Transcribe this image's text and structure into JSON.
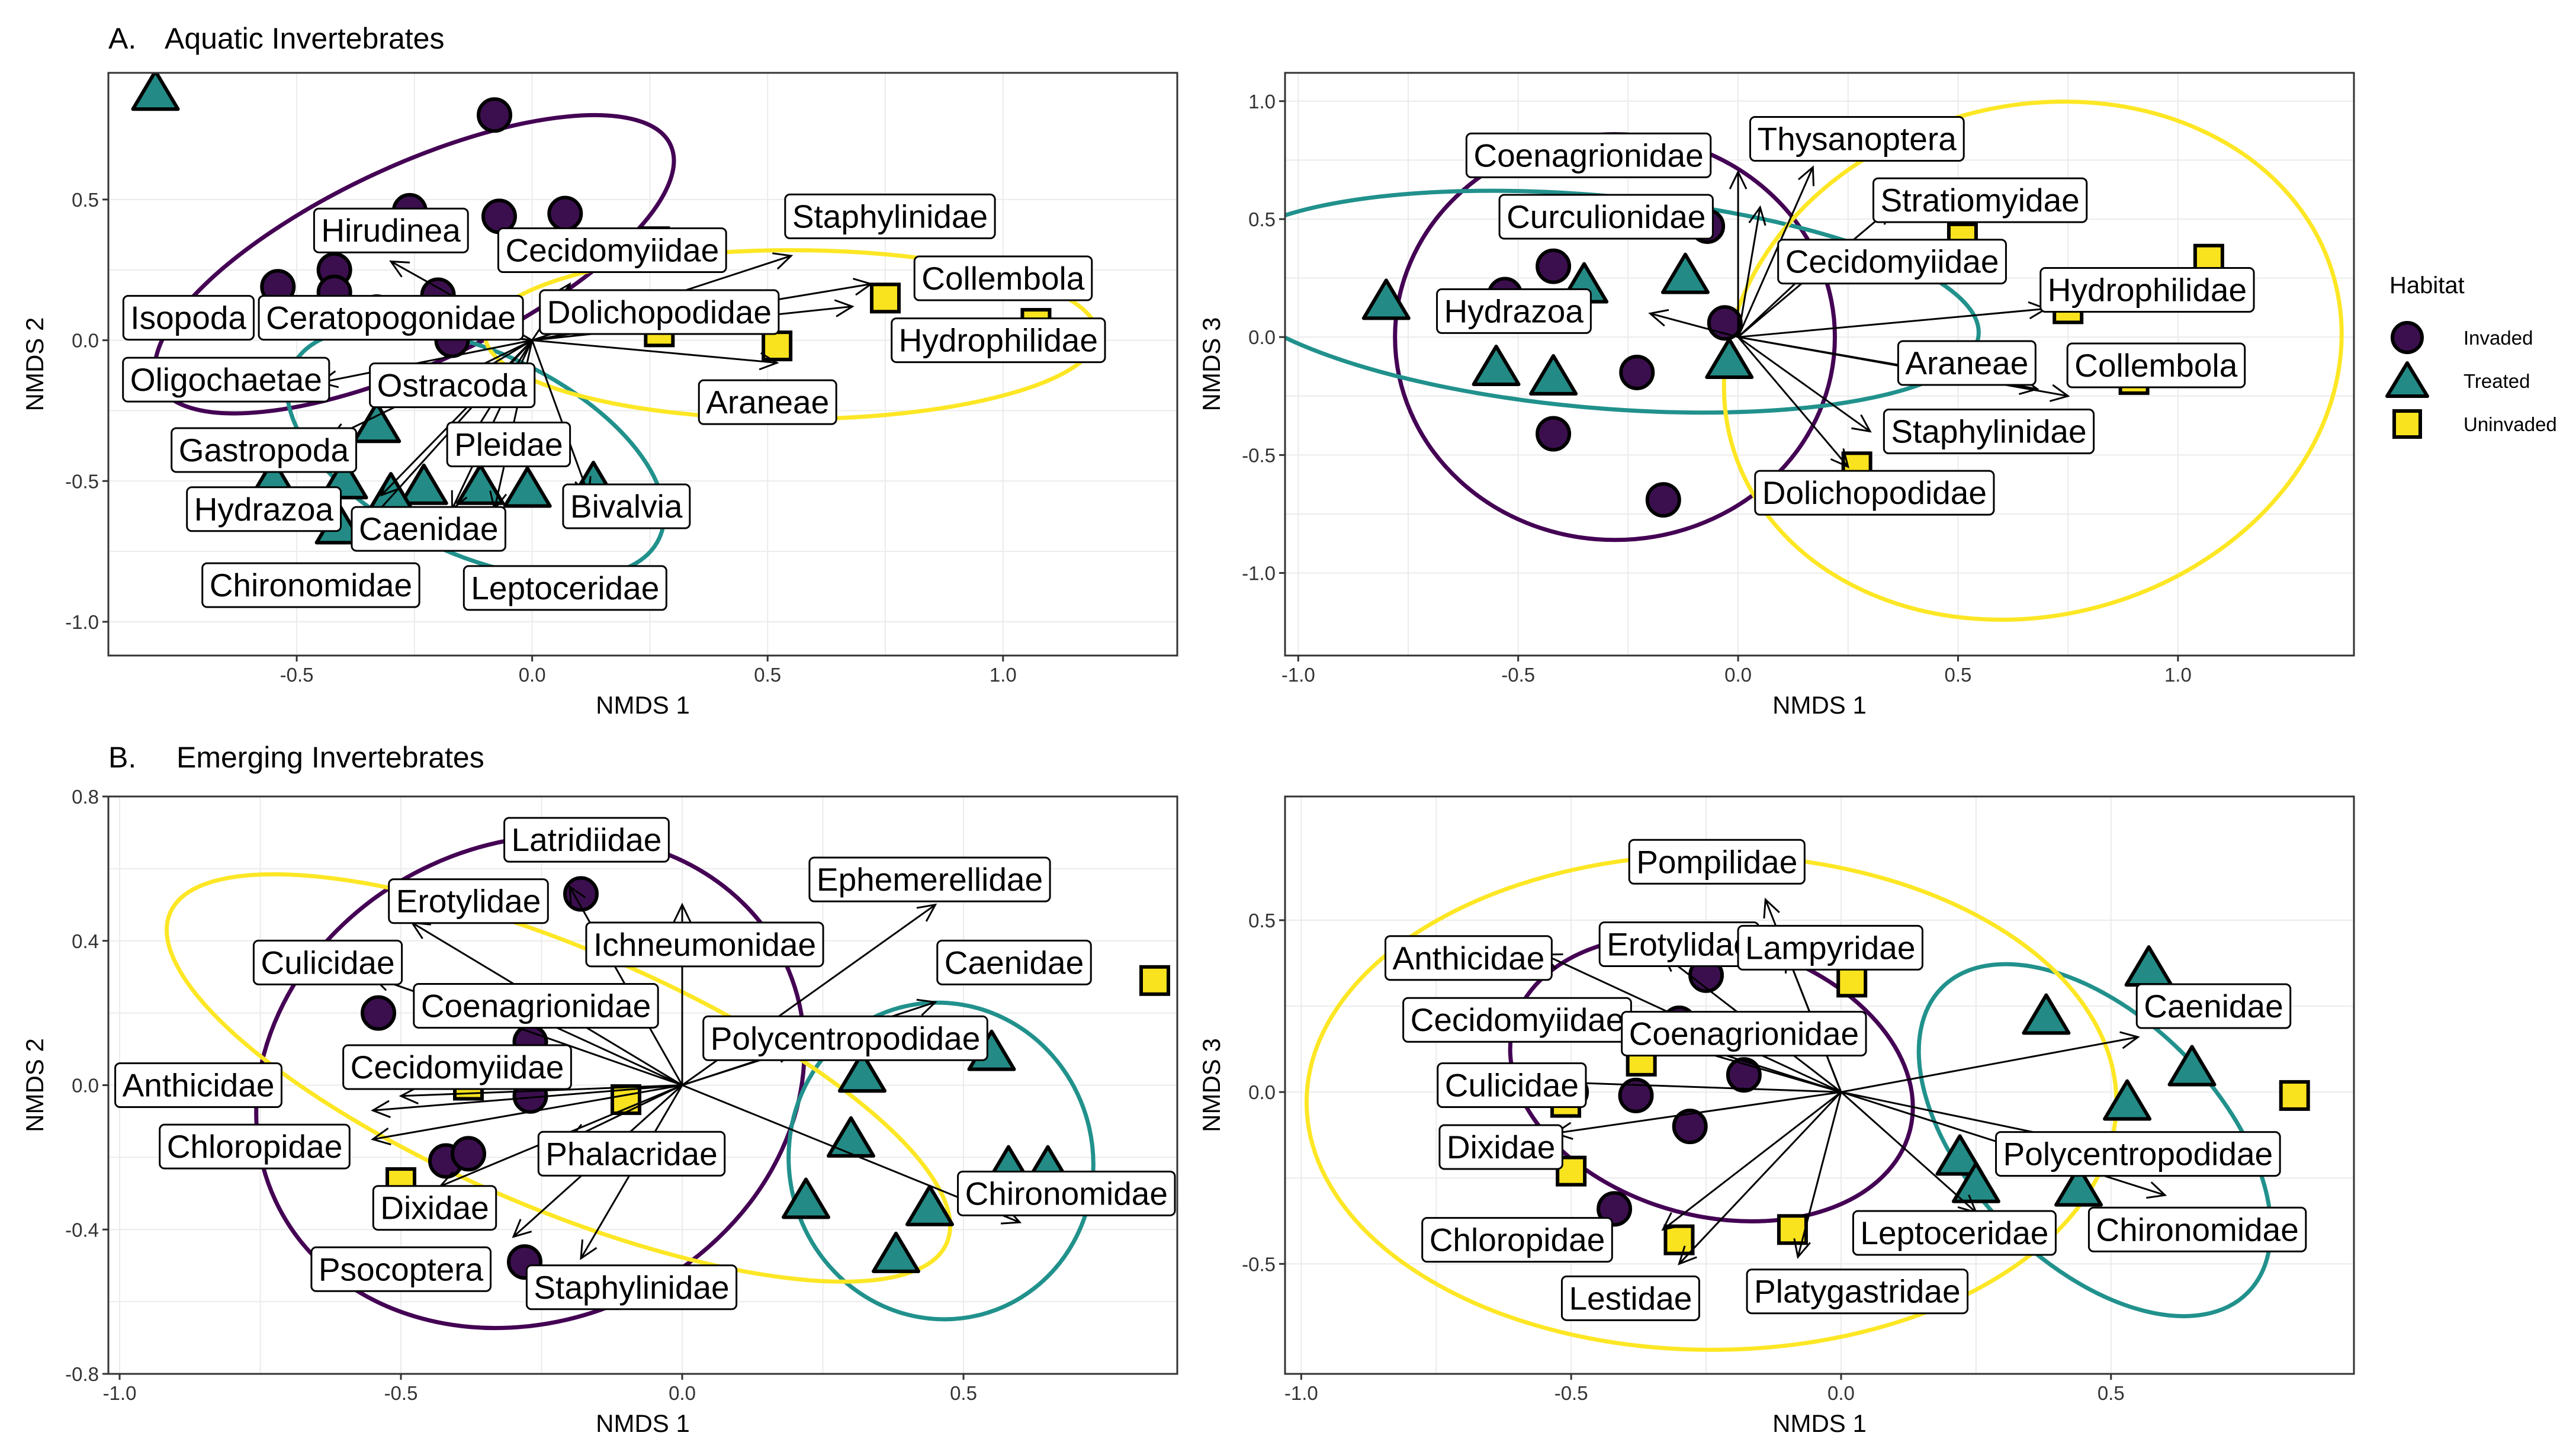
{
  "colors": {
    "invaded": "#3b0f4e",
    "treated": "#238a85",
    "uninvaded": "#f9e21e",
    "invaded_ellipse": "#440154",
    "treated_ellipse": "#21918c",
    "uninvaded_ellipse": "#fde725",
    "panel_border": "#333333",
    "grid": "#ebebeb"
  },
  "sections": [
    {
      "letter": "A.",
      "title": "Aquatic Invertebrates"
    },
    {
      "letter": "B.",
      "title": "Emerging Invertebrates"
    }
  ],
  "legend": {
    "title": "Habitat",
    "items": [
      {
        "label": "Invaded",
        "shape": "circle",
        "color": "#3b0f4e"
      },
      {
        "label": "Treated",
        "shape": "triangle",
        "color": "#238a85"
      },
      {
        "label": "Uninvaded",
        "shape": "square",
        "color": "#f9e21e"
      }
    ]
  },
  "chart_data": [
    {
      "type": "scatter",
      "section": "A",
      "xlabel": "NMDS 1",
      "ylabel": "NMDS 2",
      "xlim": [
        -0.9,
        1.37
      ],
      "ylim": [
        -1.12,
        0.95
      ],
      "xticks": [
        -0.5,
        0.0,
        0.5,
        1.0
      ],
      "yticks": [
        -1.0,
        -0.5,
        0.0,
        0.5
      ],
      "xtick_labels": [
        "-0.5",
        "0.0",
        "0.5",
        "1.0"
      ],
      "ytick_labels": [
        "-1.0",
        "-0.5",
        "0.0",
        "0.5"
      ],
      "points": {
        "Invaded": [
          [
            -0.08,
            0.8
          ],
          [
            -0.26,
            0.46
          ],
          [
            -0.07,
            0.44
          ],
          [
            0.07,
            0.45
          ],
          [
            -0.54,
            0.19
          ],
          [
            -0.42,
            0.25
          ],
          [
            -0.42,
            0.17
          ],
          [
            -0.2,
            0.16
          ],
          [
            -0.17,
            0.05
          ],
          [
            -0.33,
            0.1
          ],
          [
            -0.17,
            0.0
          ]
        ],
        "Treated": [
          [
            -0.8,
            0.88
          ],
          [
            -0.33,
            -0.3
          ],
          [
            -0.55,
            -0.5
          ],
          [
            -0.4,
            -0.5
          ],
          [
            -0.23,
            -0.52
          ],
          [
            -0.11,
            -0.52
          ],
          [
            -0.01,
            -0.53
          ],
          [
            0.13,
            -0.51
          ],
          [
            -0.41,
            -0.66
          ],
          [
            -0.3,
            -0.55
          ]
        ],
        "Uninvaded": [
          [
            0.26,
            0.35
          ],
          [
            0.29,
            0.3
          ],
          [
            0.27,
            0.03
          ],
          [
            0.52,
            -0.02
          ],
          [
            0.75,
            0.15
          ],
          [
            1.07,
            0.06
          ]
        ]
      },
      "ellipses": {
        "Invaded": {
          "cx": -0.25,
          "cy": 0.27,
          "rx": 0.6,
          "ry": 0.35,
          "angle": 25
        },
        "Treated": {
          "cx": -0.12,
          "cy": -0.4,
          "rx": 0.43,
          "ry": 0.36,
          "angle": -25
        },
        "Uninvaded": {
          "cx": 0.55,
          "cy": 0.02,
          "rx": 0.65,
          "ry": 0.3,
          "angle": 0
        }
      },
      "vectors": [
        {
          "label": "Hirudinea",
          "x": -0.3,
          "y": 0.28,
          "lx": -0.3,
          "ly": 0.39
        },
        {
          "label": "Cecidomyiidae",
          "x": 0.08,
          "y": 0.2,
          "lx": 0.17,
          "ly": 0.32
        },
        {
          "label": "Staphylinidae",
          "x": 0.55,
          "y": 0.3,
          "lx": 0.76,
          "ly": 0.44
        },
        {
          "label": "Collembola",
          "x": 0.72,
          "y": 0.2,
          "lx": 1.0,
          "ly": 0.22
        },
        {
          "label": "Hydrophilidae",
          "x": 0.68,
          "y": 0.12,
          "lx": 0.99,
          "ly": 0.0
        },
        {
          "label": "Dolichopodidae",
          "x": 0.3,
          "y": 0.09,
          "lx": 0.27,
          "ly": 0.1
        },
        {
          "label": "Isopoda",
          "x": -0.45,
          "y": 0.08,
          "lx": -0.73,
          "ly": 0.08
        },
        {
          "label": "Ceratopogonidae",
          "x": -0.25,
          "y": 0.06,
          "lx": -0.3,
          "ly": 0.08
        },
        {
          "label": "Araneae",
          "x": 0.52,
          "y": -0.08,
          "lx": 0.5,
          "ly": -0.22
        },
        {
          "label": "Oligochaetae",
          "x": -0.45,
          "y": -0.15,
          "lx": -0.65,
          "ly": -0.14
        },
        {
          "label": "Ostracoda",
          "x": -0.2,
          "y": -0.2,
          "lx": -0.17,
          "ly": -0.16
        },
        {
          "label": "Gastropoda",
          "x": -0.43,
          "y": -0.35,
          "lx": -0.57,
          "ly": -0.39
        },
        {
          "label": "Pleidae",
          "x": -0.15,
          "y": -0.4,
          "lx": -0.05,
          "ly": -0.37
        },
        {
          "label": "Bivalvia",
          "x": 0.12,
          "y": -0.55,
          "lx": 0.2,
          "ly": -0.59
        },
        {
          "label": "Hydrazoa",
          "x": -0.32,
          "y": -0.55,
          "lx": -0.57,
          "ly": -0.6
        },
        {
          "label": "Caenidae",
          "x": -0.17,
          "y": -0.6,
          "lx": -0.22,
          "ly": -0.67
        },
        {
          "label": "Chironomidae",
          "x": -0.35,
          "y": -0.65,
          "lx": -0.47,
          "ly": -0.87
        },
        {
          "label": "Leptoceridae",
          "x": -0.08,
          "y": -0.6,
          "lx": 0.07,
          "ly": -0.88
        }
      ]
    },
    {
      "type": "scatter",
      "section": "A",
      "xlabel": "NMDS 1",
      "ylabel": "NMDS 3",
      "xlim": [
        -1.03,
        1.4
      ],
      "ylim": [
        -1.35,
        1.12
      ],
      "xticks": [
        -1.0,
        -0.5,
        0.0,
        0.5,
        1.0
      ],
      "yticks": [
        -1.0,
        -0.5,
        0.0,
        0.5,
        1.0
      ],
      "xtick_labels": [
        "-1.0",
        "-0.5",
        "0.0",
        "0.5",
        "1.0"
      ],
      "ytick_labels": [
        "-1.0",
        "-0.5",
        "0.0",
        "0.5",
        "1.0"
      ],
      "points": {
        "Invaded": [
          [
            -0.42,
            0.3
          ],
          [
            -0.07,
            0.47
          ],
          [
            -0.3,
            0.5
          ],
          [
            -0.53,
            0.18
          ],
          [
            -0.23,
            -0.15
          ],
          [
            -0.03,
            0.06
          ],
          [
            -0.42,
            -0.41
          ],
          [
            -0.17,
            -0.69
          ]
        ],
        "Treated": [
          [
            -0.8,
            0.15
          ],
          [
            -0.55,
            -0.13
          ],
          [
            -0.42,
            -0.17
          ],
          [
            -0.35,
            0.22
          ],
          [
            -0.12,
            0.26
          ],
          [
            -0.02,
            -0.1
          ]
        ],
        "Uninvaded": [
          [
            0.37,
            0.55
          ],
          [
            0.51,
            0.42
          ],
          [
            1.07,
            0.33
          ],
          [
            0.75,
            0.12
          ],
          [
            0.9,
            -0.18
          ],
          [
            0.27,
            -0.55
          ]
        ]
      },
      "ellipses": {
        "Invaded": {
          "cx": -0.28,
          "cy": 0.0,
          "rx": 0.5,
          "ry": 0.86,
          "angle": 0
        },
        "Treated": {
          "cx": -0.32,
          "cy": 0.15,
          "rx": 0.87,
          "ry": 0.45,
          "angle": -5
        },
        "Uninvaded": {
          "cx": 0.67,
          "cy": -0.1,
          "rx": 0.71,
          "ry": 1.08,
          "angle": 15
        }
      },
      "vectors": [
        {
          "label": "Coenagrionidae",
          "x": 0.0,
          "y": 0.7,
          "lx": -0.34,
          "ly": 0.77
        },
        {
          "label": "Thysanoptera",
          "x": 0.17,
          "y": 0.72,
          "lx": 0.27,
          "ly": 0.84
        },
        {
          "label": "Curculionidae",
          "x": 0.05,
          "y": 0.55,
          "lx": -0.3,
          "ly": 0.51
        },
        {
          "label": "Stratiomyidae",
          "x": 0.35,
          "y": 0.55,
          "lx": 0.55,
          "ly": 0.58
        },
        {
          "label": "Cecidomyiidae",
          "x": 0.2,
          "y": 0.35,
          "lx": 0.35,
          "ly": 0.32
        },
        {
          "label": "Hydrophilidae",
          "x": 0.7,
          "y": 0.12,
          "lx": 0.93,
          "ly": 0.2
        },
        {
          "label": "Hydrazoa",
          "x": -0.2,
          "y": 0.1,
          "lx": -0.51,
          "ly": 0.11
        },
        {
          "label": "Araneae",
          "x": 0.68,
          "y": -0.22,
          "lx": 0.52,
          "ly": -0.11
        },
        {
          "label": "Collembola",
          "x": 0.75,
          "y": -0.25,
          "lx": 0.95,
          "ly": -0.12
        },
        {
          "label": "Staphylinidae",
          "x": 0.3,
          "y": -0.4,
          "lx": 0.57,
          "ly": -0.4
        },
        {
          "label": "Dolichopodidae",
          "x": 0.25,
          "y": -0.55,
          "lx": 0.31,
          "ly": -0.66
        }
      ]
    },
    {
      "type": "scatter",
      "section": "B",
      "xlabel": "NMDS 1",
      "ylabel": "NMDS 2",
      "xlim": [
        -1.02,
        0.88
      ],
      "ylim": [
        -0.8,
        0.8
      ],
      "xticks": [
        -1.0,
        -0.5,
        0.0,
        0.5
      ],
      "yticks": [
        -0.8,
        -0.4,
        0.0,
        0.4,
        0.8
      ],
      "xtick_labels": [
        "-1.0",
        "-0.5",
        "0.0",
        "0.5"
      ],
      "ytick_labels": [
        "-0.8",
        "-0.4",
        "0.0",
        "0.4",
        "0.8"
      ],
      "points": {
        "Invaded": [
          [
            -0.18,
            0.53
          ],
          [
            -0.54,
            0.2
          ],
          [
            -0.27,
            0.12
          ],
          [
            -0.27,
            -0.03
          ],
          [
            -0.42,
            -0.21
          ],
          [
            -0.38,
            -0.19
          ],
          [
            -0.37,
            -0.33
          ],
          [
            -0.28,
            -0.49
          ]
        ],
        "Treated": [
          [
            0.32,
            0.03
          ],
          [
            0.55,
            0.09
          ],
          [
            0.3,
            -0.15
          ],
          [
            0.22,
            -0.32
          ],
          [
            0.44,
            -0.34
          ],
          [
            0.38,
            -0.47
          ],
          [
            0.58,
            -0.23
          ],
          [
            0.65,
            -0.23
          ]
        ],
        "Uninvaded": [
          [
            -0.38,
            0.0
          ],
          [
            -0.1,
            -0.04
          ],
          [
            -0.5,
            -0.27
          ],
          [
            0.84,
            0.29
          ]
        ]
      },
      "ellipses": {
        "Invaded": {
          "cx": -0.27,
          "cy": 0.01,
          "rx": 0.5,
          "ry": 0.66,
          "angle": 25
        },
        "Treated": {
          "cx": 0.46,
          "cy": -0.21,
          "rx": 0.27,
          "ry": 0.44,
          "angle": 15
        },
        "Uninvaded": {
          "cx": -0.22,
          "cy": 0.02,
          "rx": 0.75,
          "ry": 0.36,
          "angle": -23
        }
      },
      "vectors": [
        {
          "label": "Latridiidae",
          "x": -0.2,
          "y": 0.55,
          "lx": -0.17,
          "ly": 0.68
        },
        {
          "label": "Ephemerellidae",
          "x": 0.45,
          "y": 0.5,
          "lx": 0.44,
          "ly": 0.57
        },
        {
          "label": "Erotylidae",
          "x": -0.48,
          "y": 0.45,
          "lx": -0.38,
          "ly": 0.51
        },
        {
          "label": "Ichneumonidae",
          "x": 0.0,
          "y": 0.5,
          "lx": 0.04,
          "ly": 0.39
        },
        {
          "label": "Culicidae",
          "x": -0.55,
          "y": 0.3,
          "lx": -0.63,
          "ly": 0.34
        },
        {
          "label": "Caenidae",
          "x": 0.45,
          "y": 0.23,
          "lx": 0.59,
          "ly": 0.34
        },
        {
          "label": "Coenagrionidae",
          "x": -0.28,
          "y": 0.2,
          "lx": -0.26,
          "ly": 0.22
        },
        {
          "label": "Polycentropodidae",
          "x": 0.2,
          "y": 0.1,
          "lx": 0.29,
          "ly": 0.13
        },
        {
          "label": "Cecidomyiidae",
          "x": -0.5,
          "y": -0.03,
          "lx": -0.4,
          "ly": 0.05
        },
        {
          "label": "Anthicidae",
          "x": -0.55,
          "y": -0.07,
          "lx": -0.86,
          "ly": 0.0
        },
        {
          "label": "Chloropidae",
          "x": -0.55,
          "y": -0.15,
          "lx": -0.76,
          "ly": -0.17
        },
        {
          "label": "Phalacridae",
          "x": -0.2,
          "y": -0.15,
          "lx": -0.09,
          "ly": -0.19
        },
        {
          "label": "Chironomidae",
          "x": 0.6,
          "y": -0.38,
          "lx": 0.69,
          "ly": -0.3
        },
        {
          "label": "Dixidae",
          "x": -0.43,
          "y": -0.28,
          "lx": -0.44,
          "ly": -0.34
        },
        {
          "label": "Psocoptera",
          "x": -0.3,
          "y": -0.42,
          "lx": -0.5,
          "ly": -0.51
        },
        {
          "label": "Staphylinidae",
          "x": -0.18,
          "y": -0.48,
          "lx": -0.09,
          "ly": -0.56
        }
      ]
    },
    {
      "type": "scatter",
      "section": "B",
      "xlabel": "NMDS 1",
      "ylabel": "NMDS 3",
      "xlim": [
        -1.03,
        0.95
      ],
      "ylim": [
        -0.82,
        0.86
      ],
      "xticks": [
        -1.0,
        -0.5,
        0.0,
        0.5
      ],
      "yticks": [
        -0.5,
        0.0,
        0.5
      ],
      "xtick_labels": [
        "-1.0",
        "-0.5",
        "0.0",
        "0.5"
      ],
      "ytick_labels": [
        "-0.5",
        "0.0",
        "0.5"
      ],
      "points": {
        "Invaded": [
          [
            -0.25,
            0.34
          ],
          [
            -0.3,
            0.2
          ],
          [
            -0.5,
            0.0
          ],
          [
            -0.38,
            -0.01
          ],
          [
            -0.18,
            0.05
          ],
          [
            -0.28,
            -0.1
          ],
          [
            -0.42,
            -0.34
          ]
        ],
        "Treated": [
          [
            0.57,
            0.36
          ],
          [
            0.38,
            0.22
          ],
          [
            0.65,
            0.07
          ],
          [
            0.53,
            -0.03
          ],
          [
            0.22,
            -0.19
          ],
          [
            0.25,
            -0.27
          ],
          [
            0.44,
            -0.28
          ]
        ],
        "Uninvaded": [
          [
            -0.37,
            0.42
          ],
          [
            0.02,
            0.32
          ],
          [
            -0.37,
            0.09
          ],
          [
            -0.51,
            -0.03
          ],
          [
            -0.5,
            -0.23
          ],
          [
            -0.3,
            -0.43
          ],
          [
            -0.09,
            -0.4
          ],
          [
            0.84,
            -0.01
          ]
        ]
      },
      "ellipses": {
        "Invaded": {
          "cx": -0.24,
          "cy": 0.04,
          "rx": 0.38,
          "ry": 0.4,
          "angle": -15
        },
        "Treated": {
          "cx": 0.47,
          "cy": -0.14,
          "rx": 0.4,
          "ry": 0.36,
          "angle": -45
        },
        "Uninvaded": {
          "cx": -0.24,
          "cy": -0.03,
          "rx": 0.75,
          "ry": 0.72,
          "angle": 0
        }
      },
      "vectors": [
        {
          "label": "Pompilidae",
          "x": -0.14,
          "y": 0.56,
          "lx": -0.23,
          "ly": 0.67
        },
        {
          "label": "Anthicidae",
          "x": -0.55,
          "y": 0.4,
          "lx": -0.69,
          "ly": 0.39
        },
        {
          "label": "Erotylidae",
          "x": -0.33,
          "y": 0.4,
          "lx": -0.3,
          "ly": 0.43
        },
        {
          "label": "Lampyridae",
          "x": -0.1,
          "y": 0.4,
          "lx": -0.02,
          "ly": 0.42
        },
        {
          "label": "Cecidomyiidae",
          "x": -0.55,
          "y": 0.25,
          "lx": -0.6,
          "ly": 0.21
        },
        {
          "label": "Coenagrionidae",
          "x": -0.3,
          "y": 0.15,
          "lx": -0.18,
          "ly": 0.17
        },
        {
          "label": "Caenidae",
          "x": 0.55,
          "y": 0.16,
          "lx": 0.69,
          "ly": 0.25
        },
        {
          "label": "Culicidae",
          "x": -0.55,
          "y": 0.03,
          "lx": -0.61,
          "ly": 0.02
        },
        {
          "label": "Dixidae",
          "x": -0.53,
          "y": -0.12,
          "lx": -0.63,
          "ly": -0.16
        },
        {
          "label": "Polycentropodidae",
          "x": 0.55,
          "y": -0.18,
          "lx": 0.55,
          "ly": -0.18
        },
        {
          "label": "Chloropidae",
          "x": -0.33,
          "y": -0.4,
          "lx": -0.6,
          "ly": -0.43
        },
        {
          "label": "Leptoceridae",
          "x": 0.25,
          "y": -0.35,
          "lx": 0.21,
          "ly": -0.41
        },
        {
          "label": "Chironomidae",
          "x": 0.6,
          "y": -0.3,
          "lx": 0.66,
          "ly": -0.4
        },
        {
          "label": "Lestidae",
          "x": -0.3,
          "y": -0.5,
          "lx": -0.39,
          "ly": -0.6
        },
        {
          "label": "Platygastridae",
          "x": -0.08,
          "y": -0.48,
          "lx": 0.03,
          "ly": -0.58
        }
      ]
    }
  ]
}
